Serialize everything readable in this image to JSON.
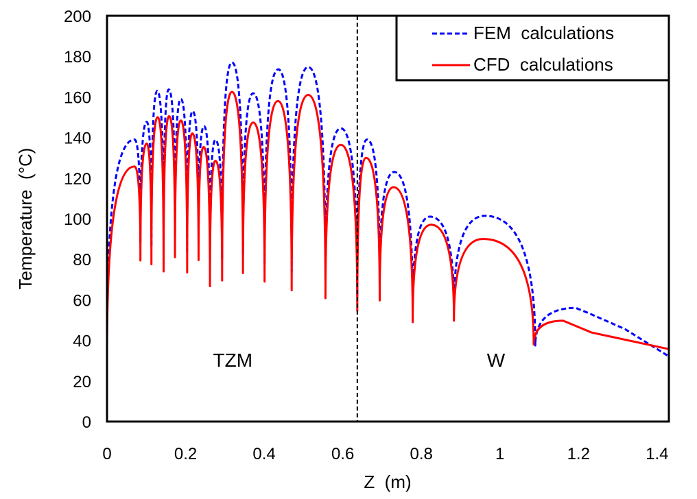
{
  "chart_data": {
    "type": "line",
    "title": "",
    "xlabel": "Z  (m)",
    "ylabel": "Temperature  (°C)",
    "xlim": [
      0,
      1.43
    ],
    "ylim": [
      0,
      200
    ],
    "x_ticks": [
      0,
      0.2,
      0.4,
      0.6,
      0.8,
      1,
      1.2,
      1.4
    ],
    "x_tick_labels": [
      "0",
      "0.2",
      "0.4",
      "0.6",
      "0.8",
      "1",
      "1.2",
      "1.4"
    ],
    "y_ticks": [
      0,
      20,
      40,
      60,
      80,
      100,
      120,
      140,
      160,
      180,
      200
    ],
    "y_tick_labels": [
      "0",
      "20",
      "40",
      "60",
      "80",
      "100",
      "120",
      "140",
      "160",
      "180",
      "200"
    ],
    "grid": false,
    "legend_placement": "top-right",
    "divider": {
      "x": 0.637,
      "style": "dashed",
      "color": "#000000"
    },
    "annotations": [
      {
        "text": "TZM",
        "x": 0.32,
        "y": 27
      },
      {
        "text": "W",
        "x": 0.99,
        "y": 27
      }
    ],
    "series": [
      {
        "name": "FEM  calculations",
        "color": "#0000ff",
        "style": "dashed",
        "x": [
          0,
          0.07,
          0.085,
          0.101,
          0.113,
          0.128,
          0.144,
          0.157,
          0.173,
          0.188,
          0.204,
          0.218,
          0.233,
          0.247,
          0.262,
          0.276,
          0.293,
          0.318,
          0.346,
          0.372,
          0.401,
          0.436,
          0.47,
          0.512,
          0.556,
          0.595,
          0.637,
          0.662,
          0.694,
          0.731,
          0.778,
          0.822,
          0.883,
          0.962,
          1.09,
          1.193,
          1.225,
          1.318,
          1.431
        ],
        "y": [
          38,
          139,
          88,
          147.7,
          86,
          163,
          84,
          163.7,
          92,
          159,
          84,
          153,
          90,
          145.6,
          78,
          138.8,
          80,
          177,
          82,
          161.8,
          78,
          173.6,
          74,
          174.7,
          70,
          144.5,
          62,
          139,
          68,
          123,
          55,
          101,
          56,
          101.4,
          37.5,
          56,
          53.5,
          45.6,
          32
        ]
      },
      {
        "name": "CFD  calculations",
        "color": "#ff0000",
        "style": "solid",
        "x": [
          0,
          0.07,
          0.085,
          0.101,
          0.113,
          0.129,
          0.144,
          0.158,
          0.173,
          0.188,
          0.204,
          0.217,
          0.233,
          0.246,
          0.262,
          0.276,
          0.293,
          0.318,
          0.346,
          0.372,
          0.401,
          0.435,
          0.47,
          0.512,
          0.556,
          0.595,
          0.637,
          0.659,
          0.694,
          0.729,
          0.778,
          0.825,
          0.883,
          0.957,
          1.086,
          1.161,
          1.233,
          1.428
        ],
        "y": [
          33,
          125.7,
          79.4,
          137,
          77.5,
          150,
          74,
          150.5,
          81,
          148.4,
          73.5,
          142,
          79.6,
          135.3,
          66.7,
          128.5,
          69.5,
          162.5,
          73.2,
          147.4,
          69,
          158,
          64.7,
          161,
          60.8,
          136.4,
          54.6,
          130,
          59.7,
          115.5,
          49,
          97,
          49.7,
          90,
          38,
          49.7,
          43.9,
          35.8
        ]
      }
    ]
  }
}
